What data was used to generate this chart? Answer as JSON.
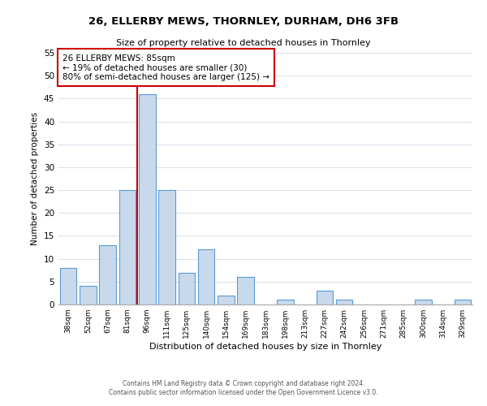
{
  "title": "26, ELLERBY MEWS, THORNLEY, DURHAM, DH6 3FB",
  "subtitle": "Size of property relative to detached houses in Thornley",
  "xlabel": "Distribution of detached houses by size in Thornley",
  "ylabel": "Number of detached properties",
  "bar_labels": [
    "38sqm",
    "52sqm",
    "67sqm",
    "81sqm",
    "96sqm",
    "111sqm",
    "125sqm",
    "140sqm",
    "154sqm",
    "169sqm",
    "183sqm",
    "198sqm",
    "213sqm",
    "227sqm",
    "242sqm",
    "256sqm",
    "271sqm",
    "285sqm",
    "300sqm",
    "314sqm",
    "329sqm"
  ],
  "bar_values": [
    8,
    4,
    13,
    25,
    46,
    25,
    7,
    12,
    2,
    6,
    0,
    1,
    0,
    3,
    1,
    0,
    0,
    0,
    1,
    0,
    1
  ],
  "bar_color": "#c8d9eb",
  "bar_edge_color": "#5b9bd5",
  "vline_x": 3.5,
  "vline_color": "#cc0000",
  "ylim": [
    0,
    55
  ],
  "yticks": [
    0,
    5,
    10,
    15,
    20,
    25,
    30,
    35,
    40,
    45,
    50,
    55
  ],
  "annotation_text": "26 ELLERBY MEWS: 85sqm\n← 19% of detached houses are smaller (30)\n80% of semi-detached houses are larger (125) →",
  "annotation_box_color": "#ffffff",
  "annotation_box_edge_color": "#cc0000",
  "footer_line1": "Contains HM Land Registry data © Crown copyright and database right 2024.",
  "footer_line2": "Contains public sector information licensed under the Open Government Licence v3.0.",
  "background_color": "#ffffff",
  "grid_color": "#d0dce8"
}
